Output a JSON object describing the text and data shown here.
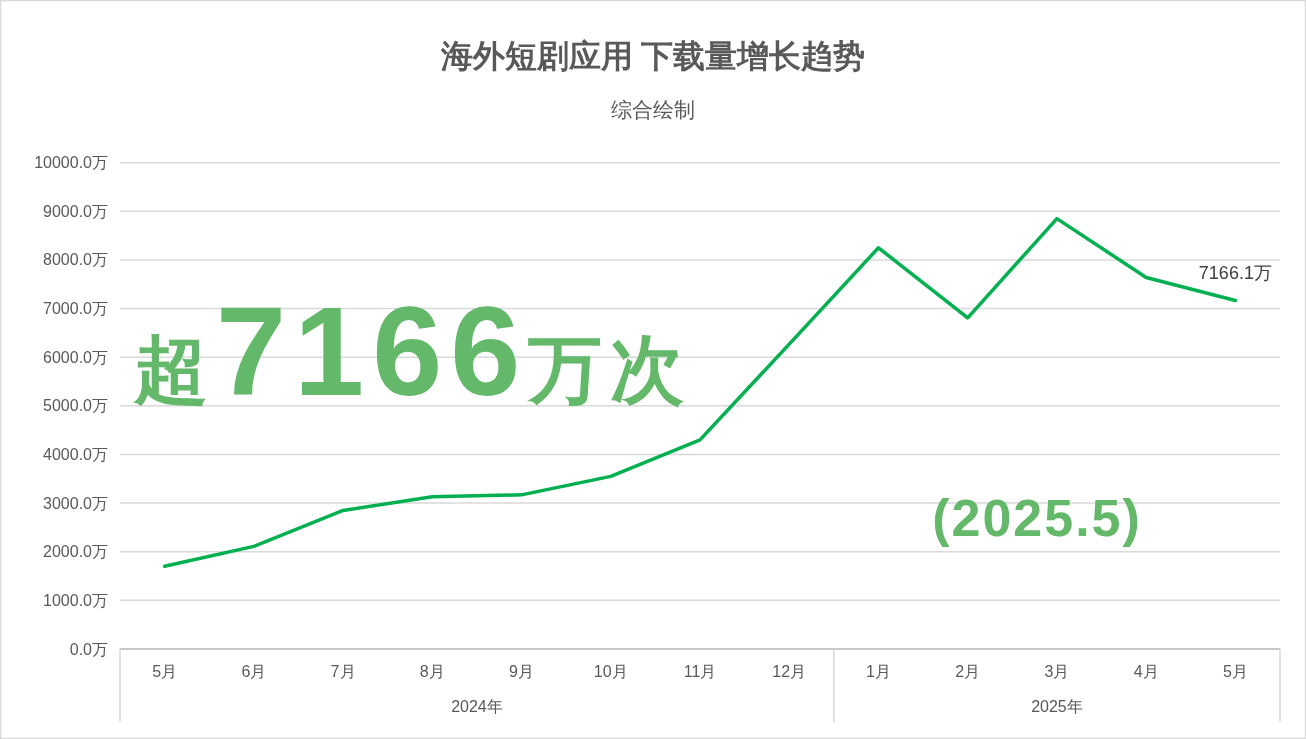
{
  "chart_data": {
    "type": "line",
    "title": "海外短剧应用 下载量增长趋势",
    "subtitle": "综合绘制",
    "categories": [
      "5月",
      "6月",
      "7月",
      "8月",
      "9月",
      "10月",
      "11月",
      "12月",
      "1月",
      "2月",
      "3月",
      "4月",
      "5月"
    ],
    "series": [
      {
        "color": "#00b050",
        "values": [
          1700,
          2110,
          2850,
          3130,
          3170,
          3550,
          4300,
          6270,
          8250,
          6810,
          8850,
          7640,
          7166.1
        ],
        "value_labels": [
          null,
          null,
          null,
          null,
          null,
          null,
          null,
          null,
          null,
          null,
          null,
          null,
          "7166.1万"
        ]
      }
    ],
    "ylim": [
      0,
      10000
    ],
    "yticks": [
      {
        "value": 0,
        "label": "0.0万"
      },
      {
        "value": 1000,
        "label": "1000.0万"
      },
      {
        "value": 2000,
        "label": "2000.0万"
      },
      {
        "value": 3000,
        "label": "3000.0万"
      },
      {
        "value": 4000,
        "label": "4000.0万"
      },
      {
        "value": 5000,
        "label": "5000.0万"
      },
      {
        "value": 6000,
        "label": "6000.0万"
      },
      {
        "value": 7000,
        "label": "7000.0万"
      },
      {
        "value": 8000,
        "label": "8000.0万"
      },
      {
        "value": 9000,
        "label": "9000.0万"
      },
      {
        "value": 10000,
        "label": "10000.0万"
      }
    ],
    "grid": "y",
    "annotations": [
      "超7166万次",
      "(2025.5)",
      "2024年",
      "2025年"
    ]
  }
}
